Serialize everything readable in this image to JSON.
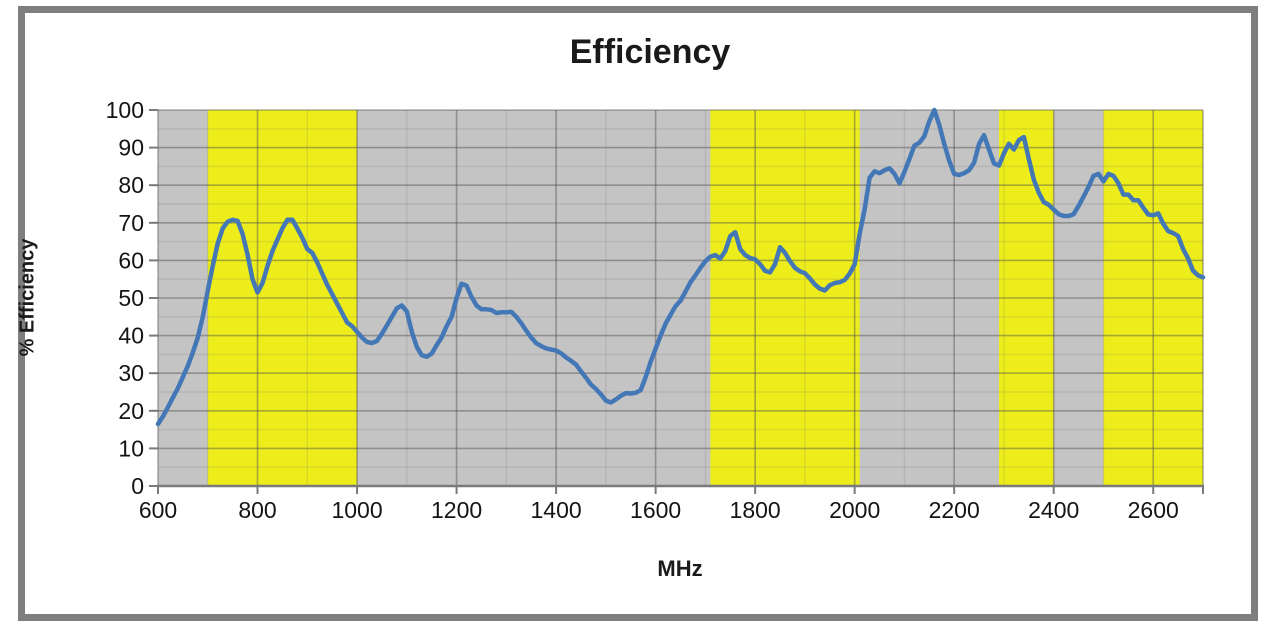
{
  "chart_data": {
    "type": "line",
    "title": "Efficiency",
    "xlabel": "MHz",
    "ylabel": "% Efficiency",
    "xlim": [
      600,
      2700
    ],
    "ylim": [
      0,
      100
    ],
    "x_tick_labels": [
      600,
      800,
      1000,
      1200,
      1400,
      1600,
      1800,
      2000,
      2200,
      2400,
      2600
    ],
    "y_tick_labels": [
      0,
      10,
      20,
      30,
      40,
      50,
      60,
      70,
      80,
      90,
      100
    ],
    "x_major_grid_step": 200,
    "x_minor_grid_step": 100,
    "y_major_grid_step": 10,
    "y_minor_grid_step": 5,
    "grid": "on",
    "legend": "none",
    "plot_bg_color": "#c4c4c4",
    "band_color": "#eded1c",
    "line_color": "#4377b6",
    "line_width": 4.5,
    "major_grid_color": "rgba(80,80,80,0.45)",
    "minor_grid_color": "rgba(90,90,90,0.14)",
    "axis_color": "#7a7a7a",
    "highlight_bands_mhz": [
      [
        700,
        1000
      ],
      [
        1710,
        2010
      ],
      [
        2290,
        2400
      ],
      [
        2500,
        2700
      ]
    ],
    "series": [
      {
        "name": "Efficiency",
        "x_start": 600,
        "x_step": 10,
        "values": [
          16.5,
          18.5,
          21,
          23.5,
          26,
          29,
          32,
          35.5,
          39.5,
          45,
          52,
          58.5,
          64.5,
          68.5,
          70.3,
          70.8,
          70.5,
          67,
          61.5,
          55,
          51.5,
          54,
          58.5,
          62.5,
          65.5,
          68.5,
          70.8,
          70.8,
          68.5,
          66,
          63,
          62,
          59.5,
          56.5,
          53.5,
          51,
          48.5,
          46,
          43.5,
          42.5,
          41,
          39.5,
          38.3,
          38,
          38.6,
          40.5,
          42.7,
          45,
          47.3,
          48,
          46.4,
          41,
          37,
          34.8,
          34.4,
          35.2,
          37.5,
          39.5,
          42.5,
          45,
          50,
          53.8,
          53.3,
          50.3,
          48,
          47,
          47,
          46.8,
          46,
          46.2,
          46.2,
          46.3,
          45,
          43.3,
          41.3,
          39.5,
          38,
          37.2,
          36.6,
          36.3,
          36,
          35.3,
          34.2,
          33.3,
          32.3,
          30.5,
          28.8,
          27,
          25.8,
          24.4,
          22.7,
          22.2,
          23,
          24,
          24.7,
          24.6,
          24.8,
          25.5,
          29,
          33,
          36.5,
          40,
          43.2,
          45.5,
          47.8,
          49.3,
          51.7,
          54.2,
          56,
          58,
          59.8,
          61,
          61.4,
          60.5,
          62.5,
          66.5,
          67.5,
          63,
          61.4,
          60.6,
          60.3,
          59,
          57.2,
          56.8,
          59,
          63.5,
          62,
          59.8,
          58,
          57.1,
          56.6,
          55.2,
          53.6,
          52.5,
          52,
          53.4,
          54,
          54.2,
          54.8,
          56.5,
          59,
          67,
          73.5,
          82,
          83.7,
          83.2,
          84,
          84.5,
          83,
          80.5,
          83.5,
          87,
          90.5,
          91.3,
          93,
          97,
          100,
          96,
          91,
          86.5,
          83,
          82.7,
          83.2,
          84,
          86,
          91,
          93.3,
          89.5,
          85.8,
          85.2,
          88.5,
          91,
          89.5,
          92,
          92.8,
          87,
          81.5,
          78,
          75.5,
          74.8,
          73.5,
          72.3,
          71.8,
          71.8,
          72.3,
          74.5,
          77,
          79.5,
          82.5,
          83,
          81,
          83,
          82.5,
          80.5,
          77.5,
          77.5,
          76,
          76,
          74,
          72.2,
          72,
          72.5,
          69.8,
          67.8,
          67.3,
          66.5,
          63,
          60.5,
          57.3,
          56,
          55.5
        ]
      }
    ]
  }
}
